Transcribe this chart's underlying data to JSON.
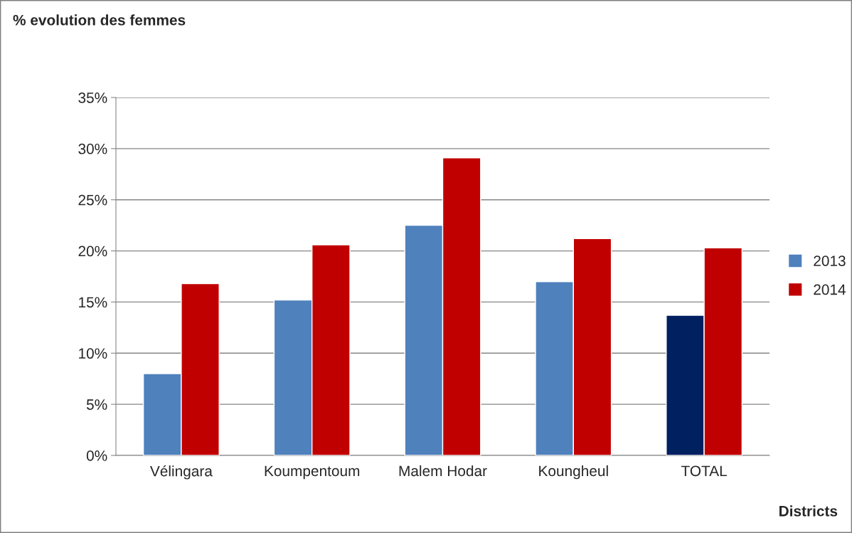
{
  "chart_data": {
    "type": "bar",
    "ylabel": "% evolution des femmes",
    "xlabel": "Districts",
    "categories": [
      "Vélingara",
      "Koumpentoum",
      "Malem Hodar",
      "Koungheul",
      "TOTAL"
    ],
    "series": [
      {
        "name": "2013",
        "color": "#4f81bd",
        "colors": [
          "#4f81bd",
          "#4f81bd",
          "#4f81bd",
          "#4f81bd",
          "#002060"
        ],
        "values": [
          8.0,
          15.2,
          22.5,
          17.0,
          13.7
        ]
      },
      {
        "name": "2014",
        "color": "#c00000",
        "values": [
          16.8,
          20.6,
          29.1,
          21.2,
          20.3
        ]
      }
    ],
    "ylim": [
      0,
      35
    ],
    "yticks": [
      {
        "value": 0,
        "label": "0%"
      },
      {
        "value": 5,
        "label": "5%"
      },
      {
        "value": 10,
        "label": "10%"
      },
      {
        "value": 15,
        "label": "15%"
      },
      {
        "value": 20,
        "label": "20%"
      },
      {
        "value": 25,
        "label": "25%"
      },
      {
        "value": 30,
        "label": "30%"
      },
      {
        "value": 35,
        "label": "35%"
      }
    ],
    "grid": "y",
    "legend": "right"
  }
}
